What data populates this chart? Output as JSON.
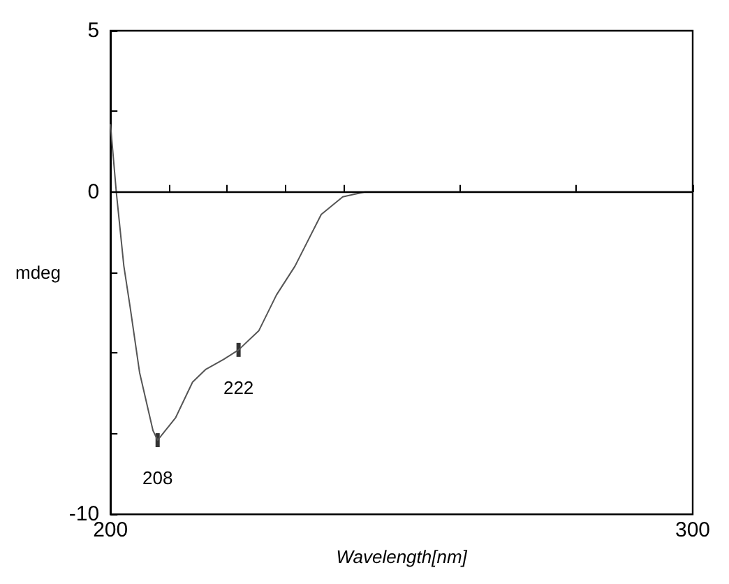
{
  "chart_data": {
    "type": "line",
    "xlabel": "Wavelength[nm]",
    "ylabel": "mdeg",
    "x": [
      200,
      201,
      202.3,
      203.4,
      205,
      207.3,
      208.1,
      211.2,
      214.1,
      216.4,
      219.4,
      222,
      225.5,
      228.5,
      231.7,
      236.2,
      239.9,
      243.7,
      260,
      280,
      300
    ],
    "series": [
      {
        "color": "#555555",
        "values": [
          2.1,
          0,
          -2.3,
          -3.6,
          -5.6,
          -7.4,
          -7.7,
          -7.0,
          -5.9,
          -5.5,
          -5.2,
          -4.9,
          -4.3,
          -3.2,
          -2.3,
          -0.7,
          -0.15,
          0,
          0,
          0,
          0
        ]
      },
      {
        "type": "scatter",
        "marker": "square",
        "color": "#000000",
        "x": [
          208.1,
          222
        ],
        "values": [
          -7.7,
          -4.9
        ]
      }
    ],
    "xlim": [
      200,
      300
    ],
    "xticks": [
      200,
      {
        "value": 210,
        "label": null
      },
      {
        "value": 220,
        "label": null
      },
      {
        "value": 230,
        "label": null
      },
      {
        "value": 240,
        "label": null
      },
      {
        "value": 260,
        "label": null
      },
      {
        "value": 280,
        "label": null
      },
      300
    ],
    "ylim": [
      -10,
      5
    ],
    "yticks": [
      -10,
      {
        "value": -7.5,
        "label": null
      },
      {
        "value": -5,
        "label": null
      },
      {
        "value": -2.5,
        "label": null
      },
      0,
      {
        "value": 2.5,
        "label": null
      },
      5
    ],
    "ref_lines": [
      {
        "axis": "y",
        "value": 0,
        "color": "#000000"
      }
    ],
    "annotations": [
      {
        "text": "208",
        "x": 208.1,
        "y": -7.7
      },
      {
        "text": "222",
        "x": 222,
        "y": -4.9
      }
    ],
    "grid": false,
    "marker": "none",
    "line_style": "solid"
  }
}
